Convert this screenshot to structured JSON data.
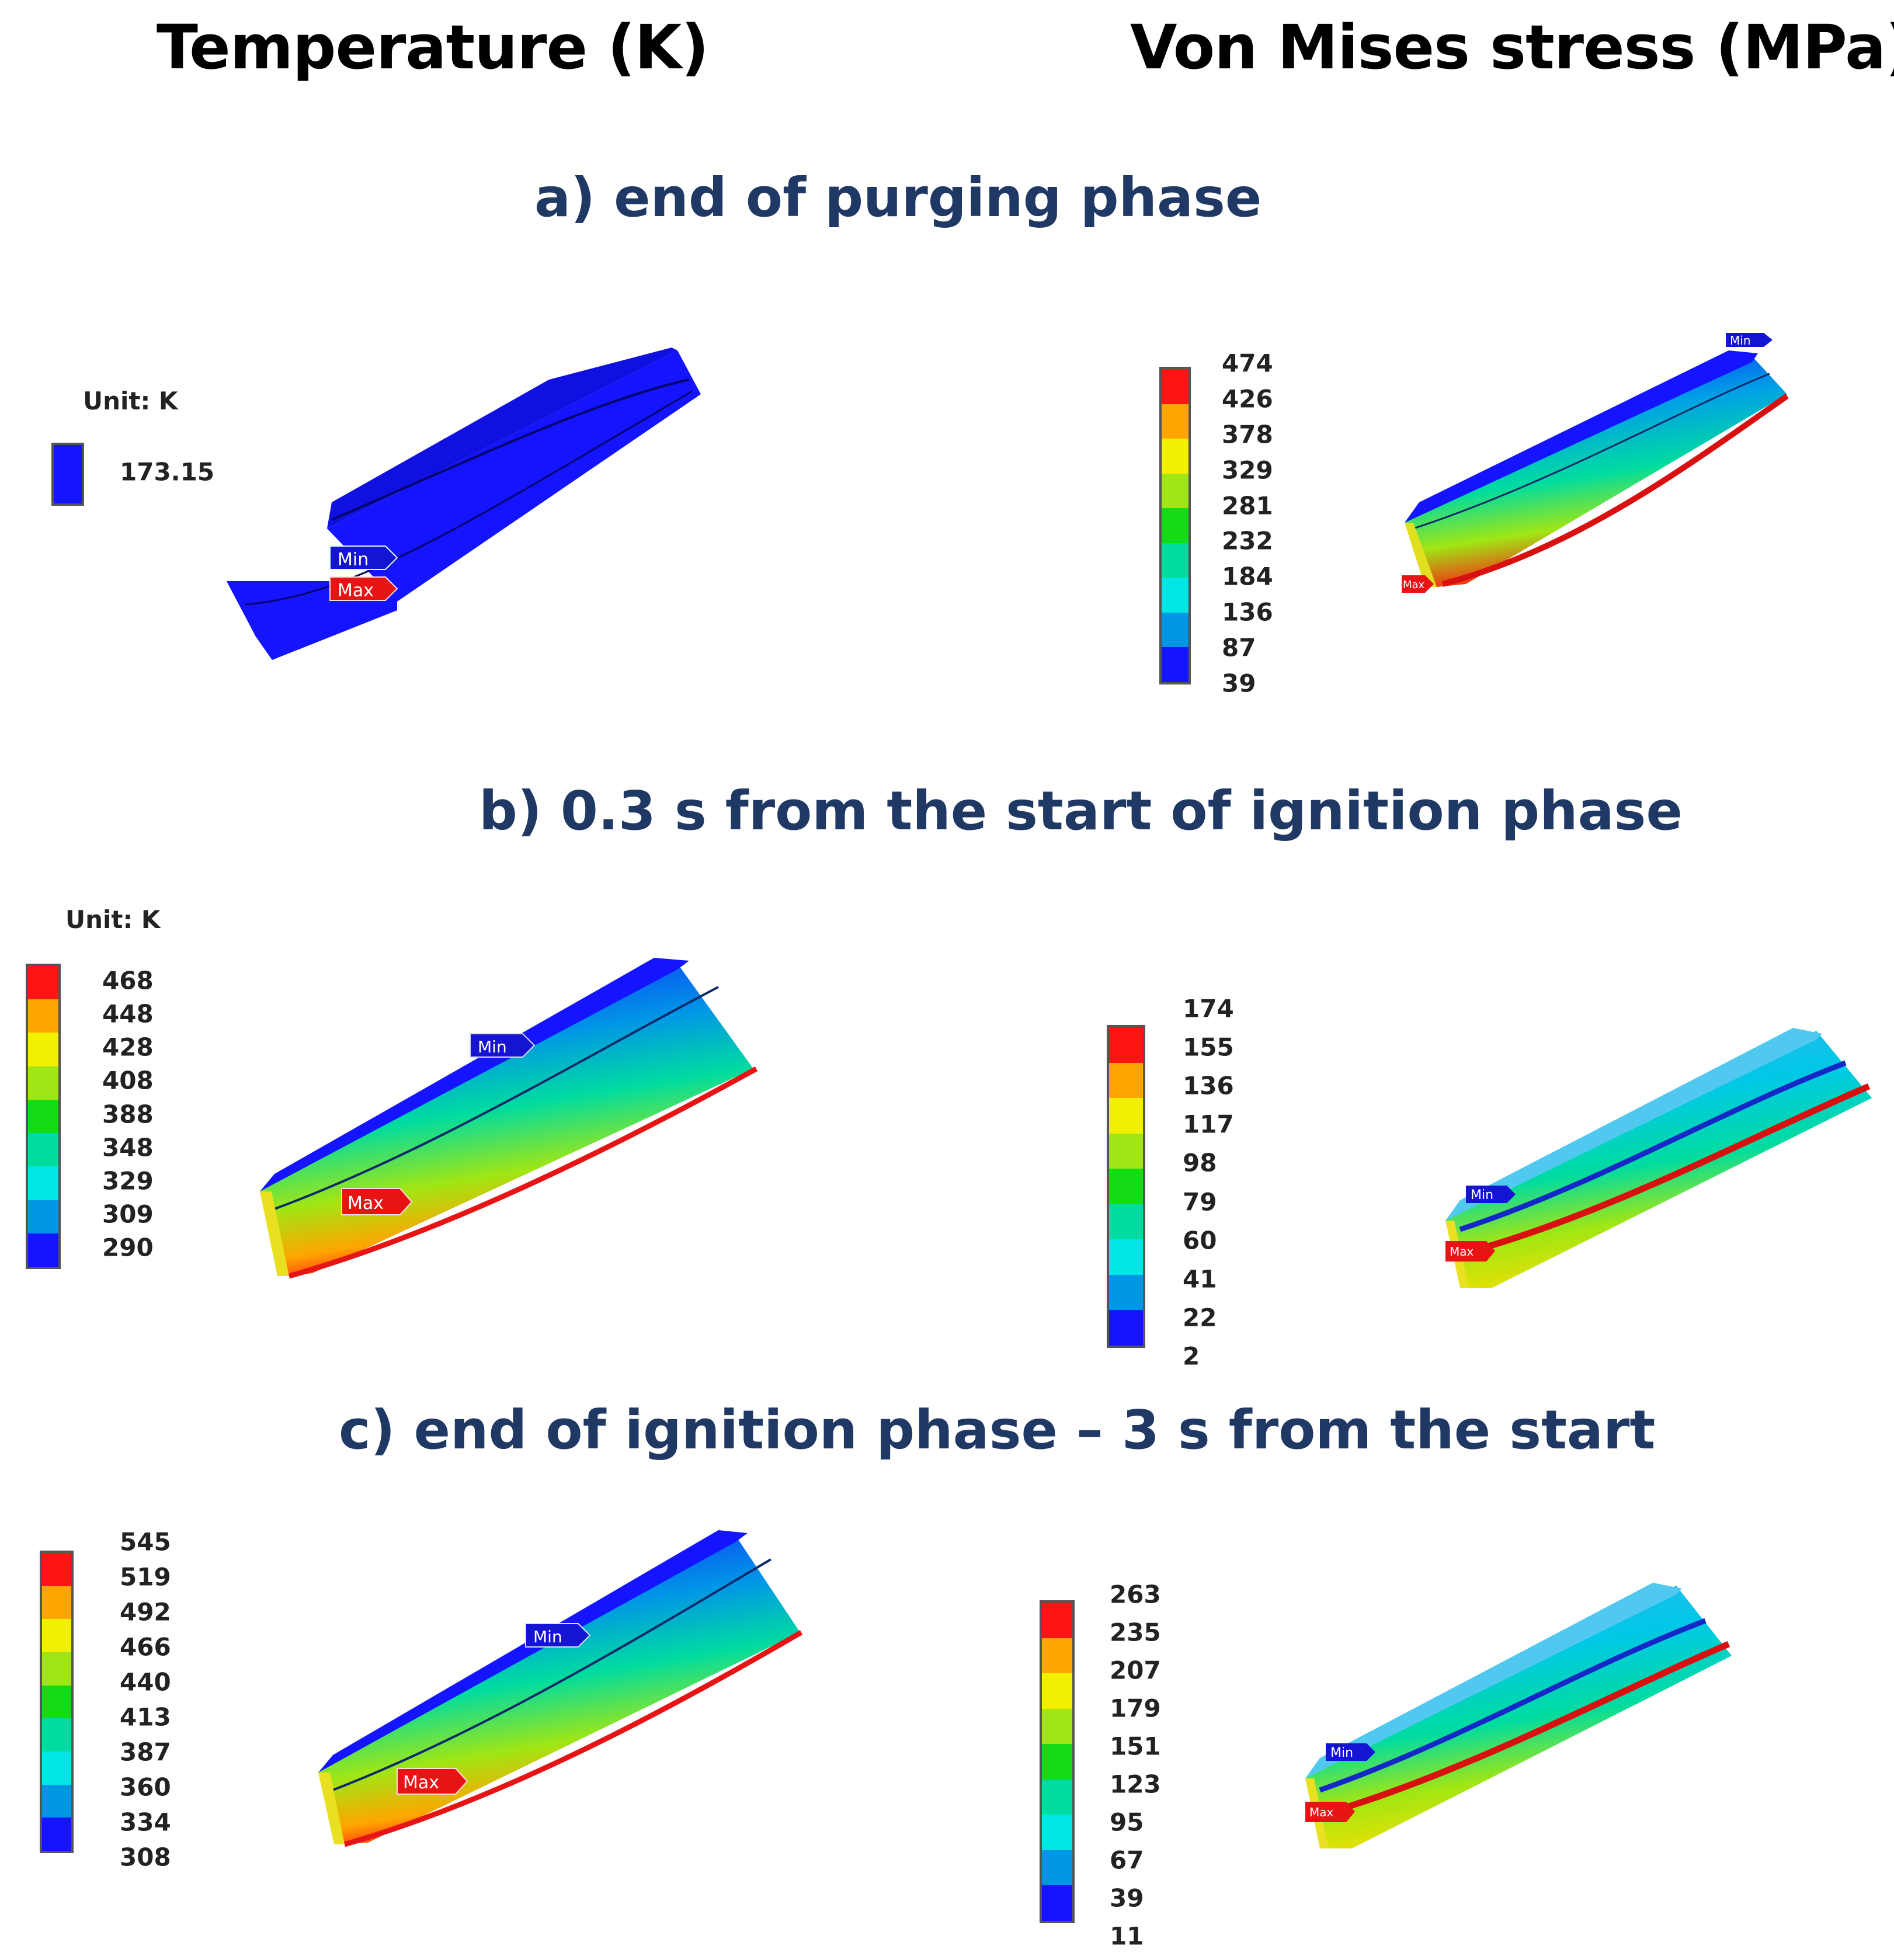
{
  "columns": {
    "left_title": "Temperature (K)",
    "right_title": "Von Mises stress (MPa)"
  },
  "colors": {
    "scale": [
      "#1414ff",
      "#0096e6",
      "#00e6e6",
      "#00dca0",
      "#14dc14",
      "#a0e614",
      "#f0f000",
      "#ffa500",
      "#ff1414"
    ],
    "title": "#1f3864",
    "min_tag": "#1414d2",
    "max_tag": "#e61414"
  },
  "panels": [
    {
      "id": "a",
      "phase_title": "a) end of purging phase",
      "temperature": {
        "unit_label": "Unit: K",
        "legend_values": [
          "173.15"
        ],
        "uniform_color": "#1414ff",
        "min_tag": "Min",
        "max_tag": "Max"
      },
      "stress": {
        "legend_values": [
          "474",
          "426",
          "378",
          "329",
          "281",
          "232",
          "184",
          "136",
          "87",
          "39"
        ],
        "min_tag": "Min",
        "max_tag": "Max"
      }
    },
    {
      "id": "b",
      "phase_title": "b) 0.3 s from the start of ignition phase",
      "temperature": {
        "unit_label": "Unit: K",
        "legend_values": [
          "468",
          "448",
          "428",
          "408",
          "388",
          "348",
          "329",
          "309",
          "290"
        ],
        "min_tag": "Min",
        "max_tag": "Max"
      },
      "stress": {
        "legend_values": [
          "174",
          "155",
          "136",
          "117",
          "98",
          "79",
          "60",
          "41",
          "22",
          "2"
        ],
        "min_tag": "Min",
        "max_tag": "Max"
      }
    },
    {
      "id": "c",
      "phase_title": "c) end of ignition phase – 3 s from the start",
      "temperature": {
        "legend_values": [
          "545",
          "519",
          "492",
          "466",
          "440",
          "413",
          "387",
          "360",
          "334",
          "308"
        ],
        "min_tag": "Min",
        "max_tag": "Max"
      },
      "stress": {
        "legend_values": [
          "263",
          "235",
          "207",
          "179",
          "151",
          "123",
          "95",
          "67",
          "39",
          "11"
        ],
        "min_tag": "Min",
        "max_tag": "Max"
      }
    }
  ]
}
